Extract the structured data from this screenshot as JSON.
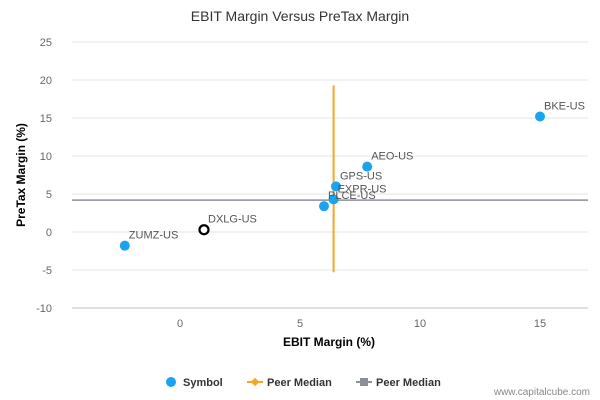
{
  "chart_data": {
    "type": "scatter",
    "title": "EBIT Margin Versus PreTax Margin",
    "xlabel": "EBIT Margin (%)",
    "ylabel": "PreTax Margin (%)",
    "xlim": [
      -4.5,
      17
    ],
    "ylim": [
      -10,
      25
    ],
    "xticks": [
      0,
      5,
      10,
      15
    ],
    "yticks": [
      -10,
      -5,
      0,
      5,
      10,
      15,
      20,
      25
    ],
    "grid": "horizontal",
    "points": [
      {
        "label": "BKE-US",
        "x": 15.0,
        "y": 15.2,
        "highlight": false
      },
      {
        "label": "AEO-US",
        "x": 7.8,
        "y": 8.6,
        "highlight": false
      },
      {
        "label": "GPS-US",
        "x": 6.5,
        "y": 6.0,
        "highlight": false
      },
      {
        "label": "EXPR-US",
        "x": 6.4,
        "y": 4.3,
        "highlight": false
      },
      {
        "label": "PLCE-US",
        "x": 6.0,
        "y": 3.4,
        "highlight": false
      },
      {
        "label": "DXLG-US",
        "x": 1.0,
        "y": 0.3,
        "highlight": true
      },
      {
        "label": "ZUMZ-US",
        "x": -2.3,
        "y": -1.8,
        "highlight": false
      }
    ],
    "peer_median_x": 6.4,
    "peer_median_x_range": [
      -5.3,
      19.3
    ],
    "peer_median_y": 4.2,
    "legend": [
      {
        "label": "Symbol",
        "kind": "dot"
      },
      {
        "label": "Peer Median",
        "kind": "orange-line"
      },
      {
        "label": "Peer Median",
        "kind": "gray-line"
      }
    ],
    "legend_position": "bottom",
    "colors": {
      "point": "#1aa3f0",
      "highlight_stroke": "#000000",
      "vertical_median": "#f5a623",
      "horizontal_median": "#8a8f99",
      "grid": "#e6e6e6"
    }
  },
  "watermark": "www.capitalcube.com"
}
